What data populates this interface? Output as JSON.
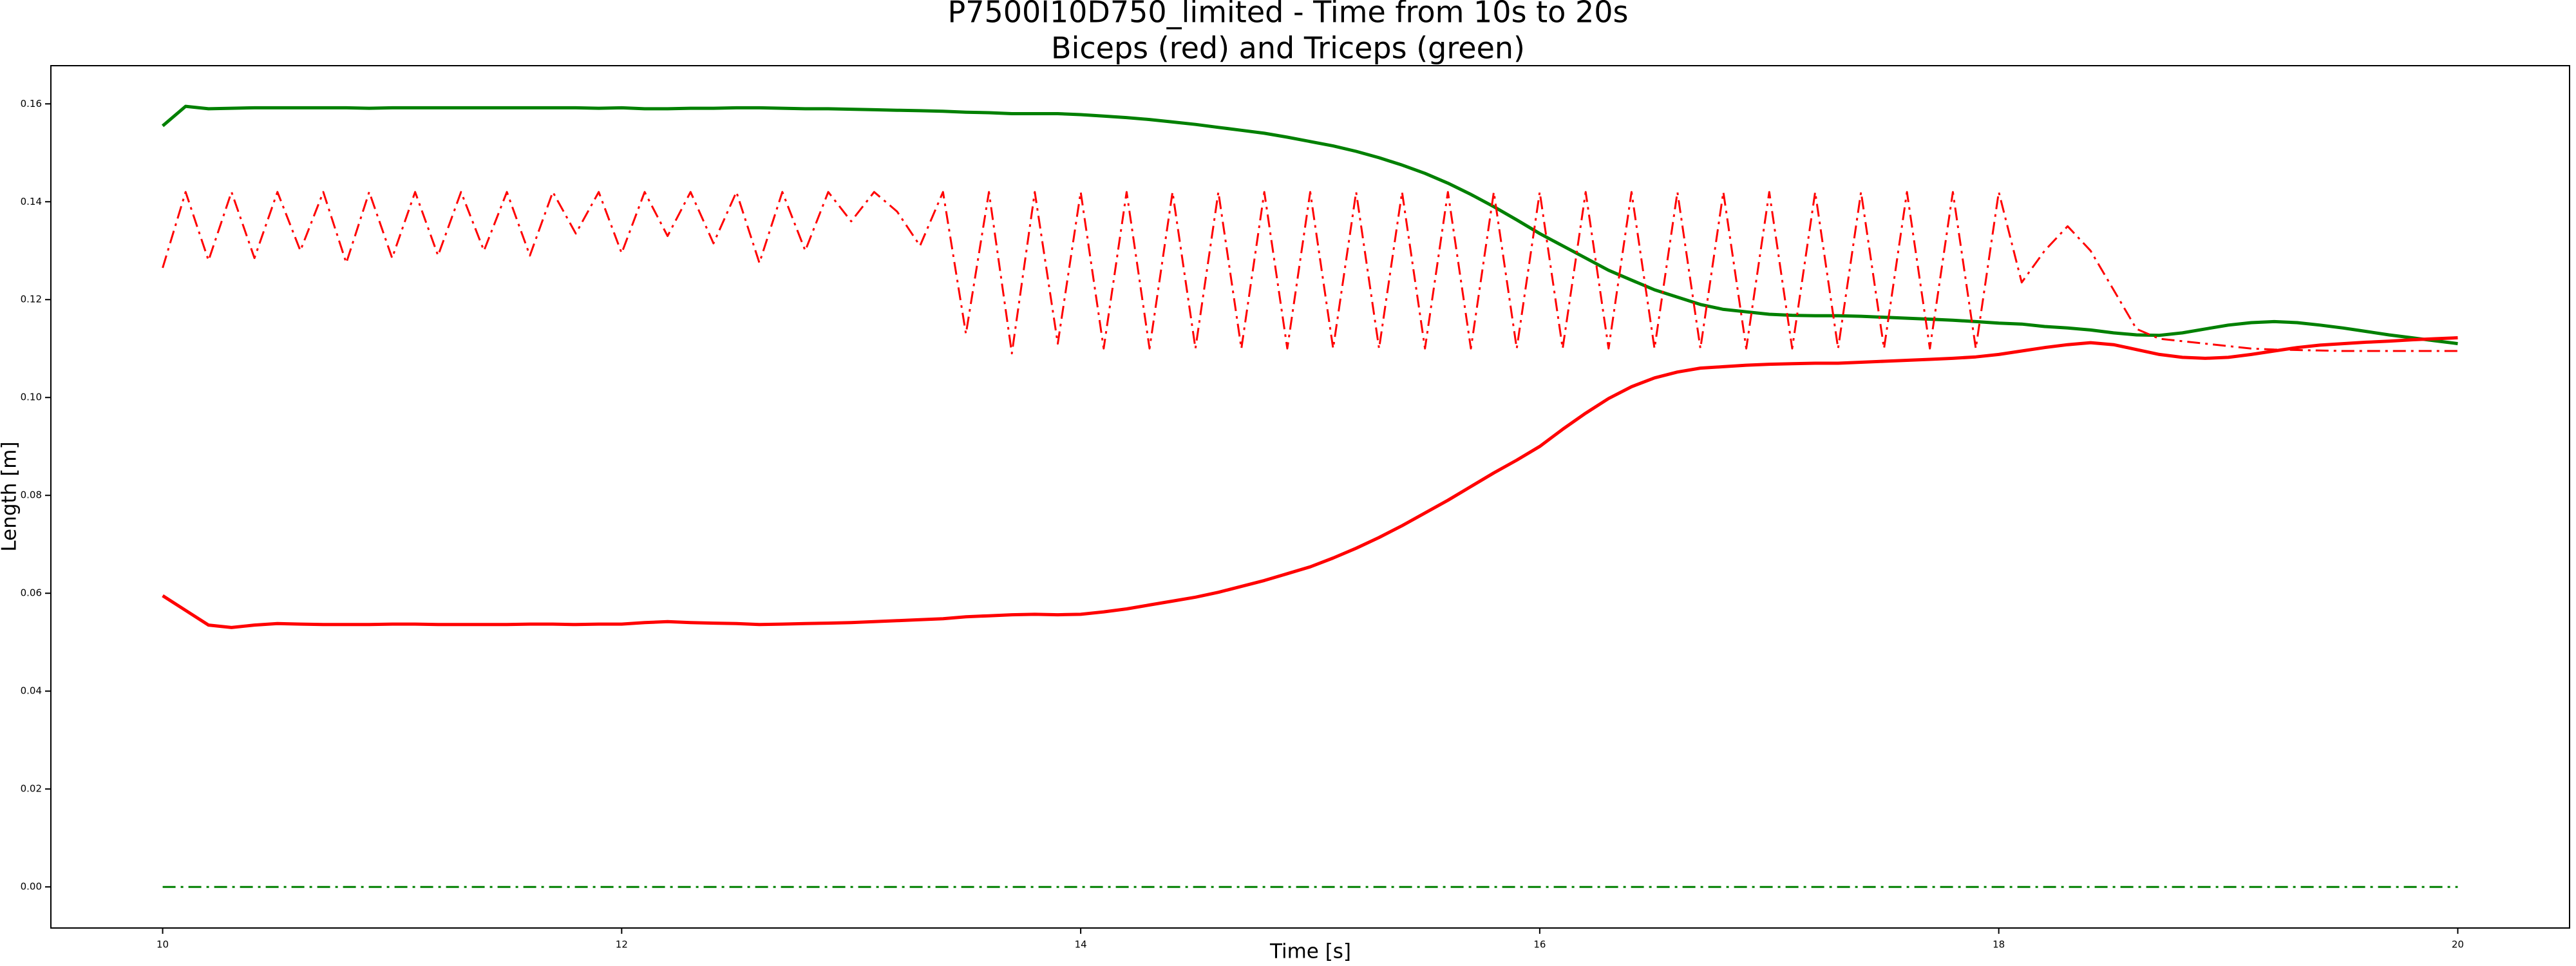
{
  "chart_data": {
    "type": "line",
    "title": "P7500I10D750_limited - Time from 10s to 20s",
    "subtitle": "Biceps (red) and Triceps (green)",
    "x_label": "Time [s]",
    "y_label": "Length [m]",
    "xlim": [
      9.513,
      20.487
    ],
    "ylim": [
      -0.0084,
      0.1678
    ],
    "xticks": [
      10,
      12,
      14,
      16,
      18,
      20
    ],
    "yticks": [
      {
        "value": 0,
        "label": "0.00"
      },
      {
        "value": 0.02,
        "label": "0.02"
      },
      {
        "value": 0.04,
        "label": "0.04"
      },
      {
        "value": 0.06,
        "label": "0.06"
      },
      {
        "value": 0.08,
        "label": "0.08"
      },
      {
        "value": 0.1,
        "label": "0.10"
      },
      {
        "value": 0.12,
        "label": "0.12"
      },
      {
        "value": 0.14,
        "label": "0.14"
      },
      {
        "value": 0.16,
        "label": "0.16"
      }
    ],
    "grid": false,
    "x": [
      10.0,
      10.1,
      10.2,
      10.3,
      10.4,
      10.5,
      10.6,
      10.7,
      10.8,
      10.9,
      11.0,
      11.1,
      11.2,
      11.3,
      11.4,
      11.5,
      11.6,
      11.7,
      11.8,
      11.9,
      12.0,
      12.1,
      12.2,
      12.3,
      12.4,
      12.5,
      12.6,
      12.7,
      12.8,
      12.9,
      13.0,
      13.1,
      13.2,
      13.3,
      13.4,
      13.5,
      13.6,
      13.7,
      13.8,
      13.9,
      14.0,
      14.1,
      14.2,
      14.3,
      14.4,
      14.5,
      14.6,
      14.7,
      14.8,
      14.9,
      15.0,
      15.1,
      15.2,
      15.3,
      15.4,
      15.5,
      15.6,
      15.7,
      15.8,
      15.9,
      16.0,
      16.1,
      16.2,
      16.3,
      16.4,
      16.5,
      16.6,
      16.7,
      16.8,
      16.9,
      17.0,
      17.1,
      17.2,
      17.3,
      17.4,
      17.5,
      17.6,
      17.7,
      17.8,
      17.9,
      18.0,
      18.1,
      18.2,
      18.3,
      18.4,
      18.5,
      18.6,
      18.7,
      18.8,
      18.9,
      19.0,
      19.1,
      19.2,
      19.3,
      19.4,
      19.5,
      19.6,
      19.7,
      19.8,
      19.9,
      20.0
    ],
    "series": [
      {
        "color": "#008000",
        "style": "solid",
        "values": [
          0.1555,
          0.1595,
          0.159,
          0.1591,
          0.1592,
          0.1592,
          0.1592,
          0.1592,
          0.1592,
          0.1591,
          0.1592,
          0.1592,
          0.1592,
          0.1592,
          0.1592,
          0.1592,
          0.1592,
          0.1592,
          0.1592,
          0.1591,
          0.1592,
          0.159,
          0.159,
          0.1591,
          0.1591,
          0.1592,
          0.1592,
          0.1591,
          0.159,
          0.159,
          0.1589,
          0.1588,
          0.1587,
          0.1586,
          0.1585,
          0.1583,
          0.1582,
          0.158,
          0.158,
          0.158,
          0.1578,
          0.1575,
          0.1572,
          0.1568,
          0.1563,
          0.1558,
          0.1552,
          0.1546,
          0.154,
          0.1532,
          0.1523,
          0.1514,
          0.1503,
          0.149,
          0.1475,
          0.1458,
          0.1438,
          0.1415,
          0.139,
          0.1363,
          0.1335,
          0.131,
          0.1285,
          0.126,
          0.124,
          0.122,
          0.1205,
          0.119,
          0.118,
          0.1175,
          0.117,
          0.1168,
          0.1167,
          0.1167,
          0.1166,
          0.1164,
          0.1162,
          0.116,
          0.1158,
          0.1155,
          0.1152,
          0.115,
          0.1145,
          0.1142,
          0.1138,
          0.1132,
          0.1128,
          0.1127,
          0.1132,
          0.114,
          0.1148,
          0.1153,
          0.1155,
          0.1153,
          0.1148,
          0.1142,
          0.1135,
          0.1128,
          0.1122,
          0.1116,
          0.111
        ]
      },
      {
        "color": "#ff0000",
        "style": "solid",
        "values": [
          0.0595,
          0.0565,
          0.0535,
          0.053,
          0.0535,
          0.0538,
          0.0537,
          0.0536,
          0.0536,
          0.0536,
          0.0537,
          0.0537,
          0.0536,
          0.0536,
          0.0536,
          0.0536,
          0.0537,
          0.0537,
          0.0536,
          0.0537,
          0.0537,
          0.054,
          0.0542,
          0.054,
          0.0539,
          0.0538,
          0.0536,
          0.0537,
          0.0538,
          0.0539,
          0.054,
          0.0542,
          0.0544,
          0.0546,
          0.0548,
          0.0552,
          0.0554,
          0.0556,
          0.0557,
          0.0556,
          0.0557,
          0.0562,
          0.0568,
          0.0576,
          0.0584,
          0.0592,
          0.0602,
          0.0614,
          0.0626,
          0.064,
          0.0654,
          0.0672,
          0.0692,
          0.0714,
          0.0738,
          0.0764,
          0.079,
          0.0818,
          0.0846,
          0.0872,
          0.09,
          0.0935,
          0.0968,
          0.0998,
          0.1022,
          0.104,
          0.1052,
          0.106,
          0.1063,
          0.1066,
          0.1068,
          0.1069,
          0.107,
          0.107,
          0.1072,
          0.1074,
          0.1076,
          0.1078,
          0.108,
          0.1083,
          0.1088,
          0.1095,
          0.1102,
          0.1108,
          0.1112,
          0.1108,
          0.1098,
          0.1088,
          0.1082,
          0.108,
          0.1082,
          0.1088,
          0.1095,
          0.1102,
          0.1107,
          0.111,
          0.1113,
          0.1115,
          0.1118,
          0.112,
          0.1122
        ]
      },
      {
        "color": "#ff0000",
        "style": "dashdot",
        "values": [
          0.1265,
          0.142,
          0.128,
          0.142,
          0.1285,
          0.142,
          0.13,
          0.142,
          0.1275,
          0.142,
          0.1285,
          0.142,
          0.129,
          0.142,
          0.13,
          0.142,
          0.129,
          0.142,
          0.1335,
          0.142,
          0.1295,
          0.142,
          0.133,
          0.142,
          0.1315,
          0.142,
          0.1275,
          0.142,
          0.13,
          0.142,
          0.136,
          0.142,
          0.138,
          0.131,
          0.142,
          0.113,
          0.142,
          0.109,
          0.142,
          0.111,
          0.142,
          0.11,
          0.142,
          0.11,
          0.142,
          0.11,
          0.142,
          0.11,
          0.142,
          0.11,
          0.142,
          0.11,
          0.142,
          0.11,
          0.142,
          0.11,
          0.142,
          0.11,
          0.142,
          0.11,
          0.142,
          0.11,
          0.142,
          0.11,
          0.142,
          0.11,
          0.142,
          0.11,
          0.142,
          0.11,
          0.142,
          0.11,
          0.142,
          0.11,
          0.142,
          0.11,
          0.142,
          0.11,
          0.142,
          0.11,
          0.142,
          0.1235,
          0.13,
          0.135,
          0.13,
          0.122,
          0.114,
          0.112,
          0.1115,
          0.111,
          0.1105,
          0.11,
          0.1098,
          0.1097,
          0.1096,
          0.1095,
          0.1095,
          0.1095,
          0.1095,
          0.1095,
          0.1095
        ]
      },
      {
        "color": "#008000",
        "style": "dashdot",
        "values": [
          0,
          0,
          0,
          0,
          0,
          0,
          0,
          0,
          0,
          0,
          0,
          0,
          0,
          0,
          0,
          0,
          0,
          0,
          0,
          0,
          0,
          0,
          0,
          0,
          0,
          0,
          0,
          0,
          0,
          0,
          0,
          0,
          0,
          0,
          0,
          0,
          0,
          0,
          0,
          0,
          0,
          0,
          0,
          0,
          0,
          0,
          0,
          0,
          0,
          0,
          0,
          0,
          0,
          0,
          0,
          0,
          0,
          0,
          0,
          0,
          0,
          0,
          0,
          0,
          0,
          0,
          0,
          0,
          0,
          0,
          0,
          0,
          0,
          0,
          0,
          0,
          0,
          0,
          0,
          0,
          0,
          0,
          0,
          0,
          0,
          0,
          0,
          0,
          0,
          0,
          0,
          0,
          0,
          0,
          0,
          0,
          0,
          0,
          0,
          0,
          0
        ]
      }
    ]
  }
}
